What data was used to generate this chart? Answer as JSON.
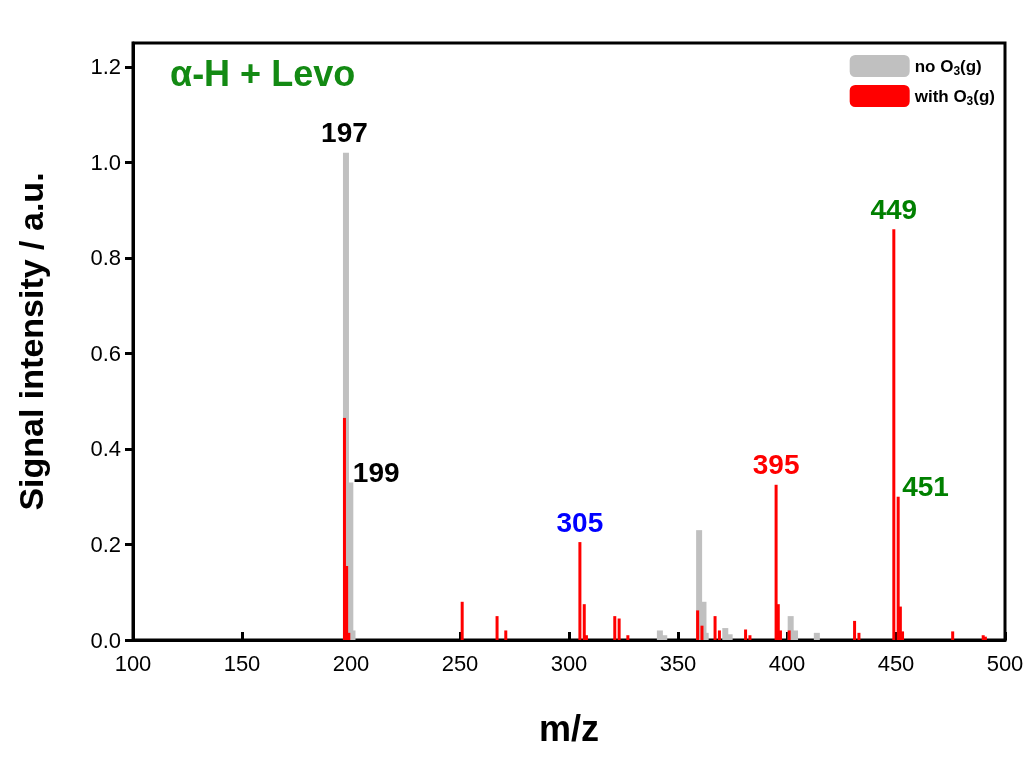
{
  "chart_data": {
    "type": "bar",
    "title": "α-H + Levo",
    "xlabel": "m/z",
    "ylabel": "Signal intensity / a.u.",
    "xlim": [
      100,
      500
    ],
    "xticks": [
      100,
      150,
      200,
      250,
      300,
      350,
      400,
      450,
      500
    ],
    "ylim": [
      0,
      1.25
    ],
    "yticks": [
      {
        "value": 0,
        "label": "0.0"
      },
      {
        "value": 0.2,
        "label": "0.2"
      },
      {
        "value": 0.4,
        "label": "0.4"
      },
      {
        "value": 0.6,
        "label": "0.6"
      },
      {
        "value": 0.8,
        "label": "0.8"
      },
      {
        "value": 1,
        "label": "1.0"
      },
      {
        "value": 1.2,
        "label": "1.2"
      }
    ],
    "grid": false,
    "legend": "top right",
    "series": [
      {
        "name": "no O$_{3}$(g)",
        "color": "#c0c0c0",
        "x": [
          197,
          199,
          200,
          341,
          343,
          359,
          361,
          362,
          371,
          373,
          401,
          403,
          413
        ],
        "values": [
          1.02,
          0.33,
          0.02,
          0.02,
          0.01,
          0.23,
          0.08,
          0.015,
          0.025,
          0.012,
          0.05,
          0.02,
          0.015
        ]
      },
      {
        "name": "with O$_{3}$(g)",
        "color": "#ff0000",
        "x": [
          197,
          198,
          199,
          251,
          267,
          271,
          305,
          307,
          308,
          321,
          323,
          327,
          359,
          361,
          367,
          369,
          381,
          383,
          395,
          396,
          397,
          401,
          431,
          433,
          449,
          451,
          452,
          453,
          476,
          490,
          491
        ],
        "values": [
          0.465,
          0.155,
          0.015,
          0.08,
          0.05,
          0.02,
          0.205,
          0.075,
          0.01,
          0.05,
          0.045,
          0.01,
          0.062,
          0.03,
          0.05,
          0.02,
          0.022,
          0.01,
          0.325,
          0.075,
          0.02,
          0.02,
          0.04,
          0.015,
          0.86,
          0.3,
          0.07,
          0.018,
          0.018,
          0.01,
          0.007
        ]
      }
    ],
    "annotations": [
      {
        "text": "197",
        "x": 197,
        "y": 1.02
      },
      {
        "text": "199",
        "x": 199,
        "y": 0.33
      },
      {
        "text": "305",
        "x": 305,
        "y": 0.205
      },
      {
        "text": "395",
        "x": 395,
        "y": 0.325
      },
      {
        "text": "449",
        "x": 449,
        "y": 0.86
      },
      {
        "text": "451",
        "x": 451,
        "y": 0.3
      }
    ]
  }
}
